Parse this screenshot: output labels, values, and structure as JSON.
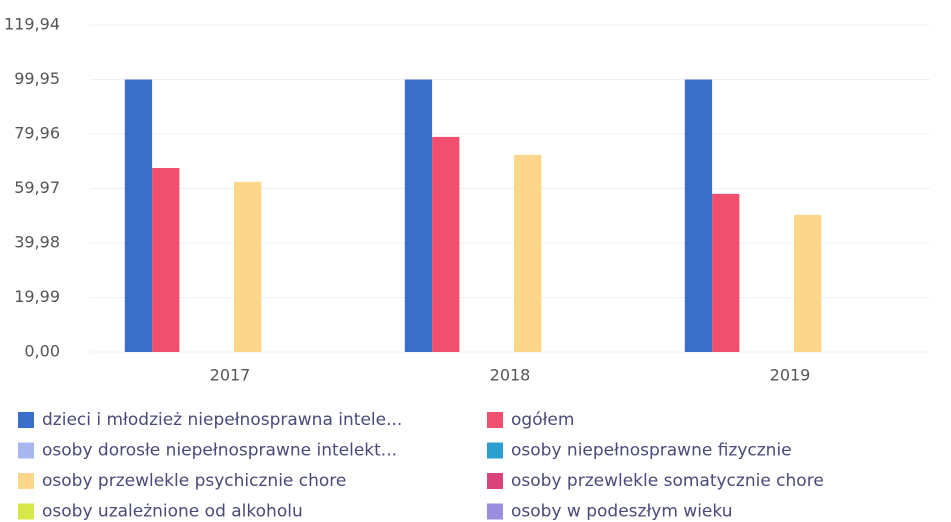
{
  "chart_data": {
    "type": "bar",
    "categories": [
      "2017",
      "2018",
      "2019"
    ],
    "series": [
      {
        "name": "dzieci i młodzież niepełnosprawna intele...",
        "color": "#3a6fc9",
        "values": [
          99.95,
          99.95,
          99.95
        ]
      },
      {
        "name": "ogółem",
        "color": "#f0506e",
        "values": [
          67.5,
          78.9,
          58
        ]
      },
      {
        "name": "osoby dorosłe niepełnosprawne intelekt...",
        "color": "#a9b7f0",
        "values": [
          0,
          0,
          0
        ]
      },
      {
        "name": "osoby niepełnosprawne fizycznie",
        "color": "#2a9fd0",
        "values": [
          0,
          0,
          0
        ]
      },
      {
        "name": "osoby przewlekle psychicznie chore",
        "color": "#fcd68a",
        "values": [
          62.4,
          72.3,
          50.3
        ]
      },
      {
        "name": "osoby przewlekle somatycznie chore",
        "color": "#d8437a",
        "values": [
          0,
          0,
          0
        ]
      },
      {
        "name": "osoby uzależnione od alkoholu",
        "color": "#d6e84a",
        "values": [
          0,
          0,
          0
        ]
      },
      {
        "name": "osoby w podeszłym wieku",
        "color": "#9b8ee0",
        "values": [
          0,
          0,
          0
        ]
      }
    ],
    "ylim": [
      0,
      119.94
    ],
    "yticks": [
      {
        "value": 0,
        "label": "0,00"
      },
      {
        "value": 19.99,
        "label": "19,99"
      },
      {
        "value": 39.98,
        "label": "39,98"
      },
      {
        "value": 59.97,
        "label": "59,97"
      },
      {
        "value": 79.96,
        "label": "79,96"
      },
      {
        "value": 99.95,
        "label": "99,95"
      },
      {
        "value": 119.94,
        "label": "119,94"
      }
    ],
    "grid": true
  }
}
